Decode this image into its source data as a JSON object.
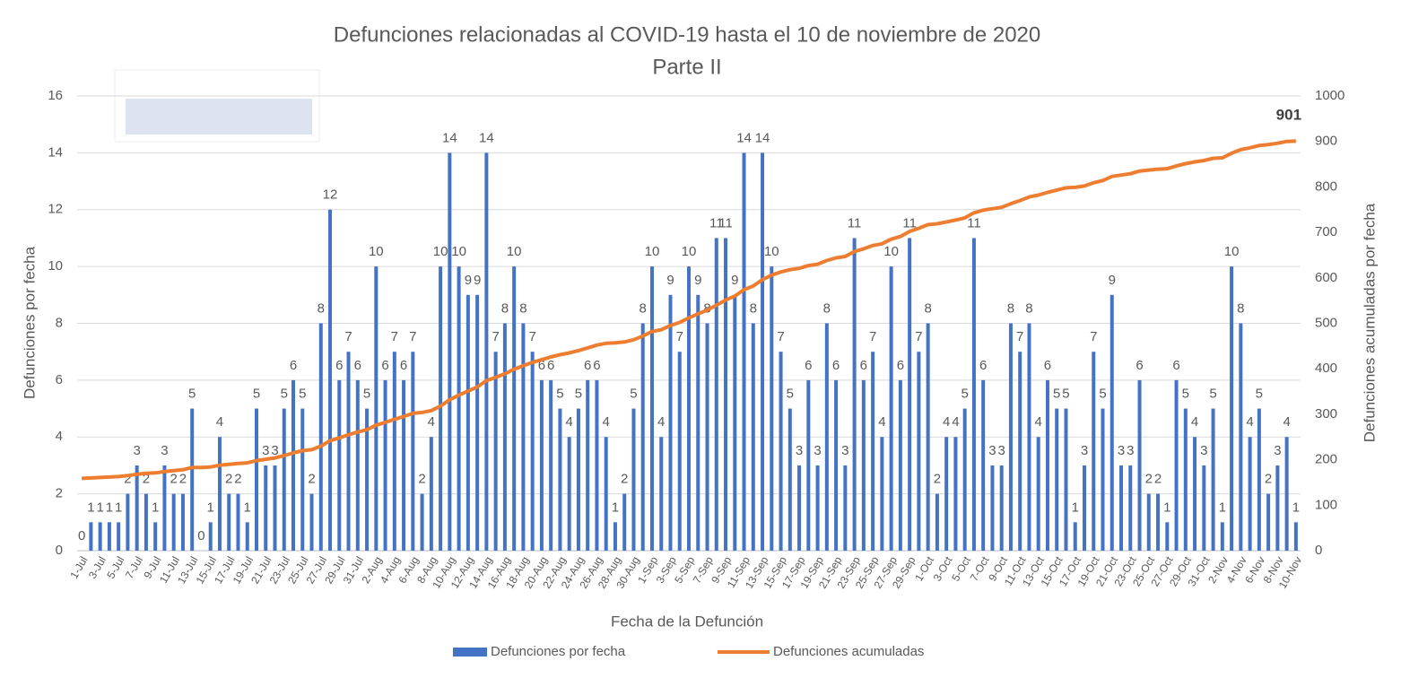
{
  "chart_data": {
    "type": "bar",
    "title": "Defunciones relacionadas al COVID-19 hasta el 10 de noviembre de 2020",
    "subtitle": "Parte II",
    "x_label": "Fecha de la Defunción",
    "y_label": "Defunciones por fecha",
    "y2_label": "Defunciones acumuladas por fecha",
    "categories": [
      "1-Jul",
      null,
      "3-Jul",
      null,
      "5-Jul",
      null,
      "7-Jul",
      null,
      "9-Jul",
      null,
      "11-Jul",
      null,
      "13-Jul",
      null,
      "15-Jul",
      null,
      "17-Jul",
      null,
      "19-Jul",
      null,
      "21-Jul",
      null,
      "23-Jul",
      null,
      "25-Jul",
      null,
      "27-Jul",
      null,
      "29-Jul",
      null,
      "31-Jul",
      null,
      "2-Aug",
      null,
      "4-Aug",
      null,
      "6-Aug",
      null,
      "8-Aug",
      null,
      "10-Aug",
      null,
      "12-Aug",
      null,
      "14-Aug",
      null,
      "16-Aug",
      null,
      "18-Aug",
      null,
      "20-Aug",
      null,
      "22-Aug",
      null,
      "24-Aug",
      null,
      "26-Aug",
      null,
      "28-Aug",
      null,
      "30-Aug",
      null,
      "1-Sep",
      null,
      "3-Sep",
      null,
      "5-Sep",
      null,
      "7-Sep",
      null,
      "9-Sep",
      null,
      "11-Sep",
      null,
      "13-Sep",
      null,
      "15-Sep",
      null,
      "17-Sep",
      null,
      "19-Sep",
      null,
      "21-Sep",
      null,
      "23-Sep",
      null,
      "25-Sep",
      null,
      "27-Sep",
      null,
      "29-Sep",
      null,
      "1-Oct",
      null,
      "3-Oct",
      null,
      "5-Oct",
      null,
      "7-Oct",
      null,
      "9-Oct",
      null,
      "11-Oct",
      null,
      "13-Oct",
      null,
      "15-Oct",
      null,
      "17-Oct",
      null,
      "19-Oct",
      null,
      "21-Oct",
      null,
      "23-Oct",
      null,
      "25-Oct",
      null,
      "27-Oct",
      null,
      "29-Oct",
      null,
      "31-Oct",
      null,
      "2-Nov",
      null,
      "4-Nov",
      null,
      "6-Nov",
      null,
      "8-Nov",
      null,
      "10-Nov"
    ],
    "series": [
      {
        "name": "Defunciones por fecha",
        "type": "bar",
        "color": "#4472c4",
        "values": [
          0,
          1,
          1,
          1,
          1,
          2,
          3,
          2,
          1,
          3,
          2,
          2,
          5,
          0,
          1,
          4,
          2,
          2,
          1,
          5,
          3,
          3,
          5,
          6,
          5,
          2,
          8,
          12,
          6,
          7,
          6,
          5,
          10,
          6,
          7,
          6,
          7,
          2,
          4,
          10,
          14,
          10,
          9,
          9,
          14,
          7,
          8,
          10,
          8,
          7,
          6,
          6,
          5,
          4,
          5,
          6,
          6,
          4,
          1,
          2,
          5,
          8,
          10,
          4,
          9,
          7,
          10,
          9,
          8,
          11,
          11,
          9,
          14,
          8,
          14,
          10,
          7,
          5,
          3,
          6,
          3,
          8,
          6,
          3,
          11,
          6,
          7,
          4,
          10,
          6,
          11,
          7,
          8,
          2,
          4,
          4,
          5,
          11,
          6,
          3,
          3,
          8,
          7,
          8,
          4,
          6,
          5,
          5,
          1,
          3,
          7,
          5,
          9,
          3,
          3,
          6,
          2,
          2,
          1,
          6,
          5,
          4,
          3,
          5,
          1,
          10,
          8,
          4,
          5,
          2,
          3,
          4,
          1
        ]
      },
      {
        "name": "Defunciones acumuladas",
        "type": "line",
        "axis": "y2",
        "color": "#ed7d31",
        "values": [
          159,
          160,
          161,
          162,
          163,
          165,
          168,
          170,
          171,
          174,
          176,
          178,
          183,
          183,
          184,
          188,
          190,
          192,
          193,
          198,
          201,
          204,
          209,
          215,
          220,
          222,
          230,
          242,
          248,
          255,
          261,
          266,
          276,
          282,
          289,
          295,
          302,
          304,
          308,
          318,
          332,
          342,
          351,
          360,
          374,
          381,
          389,
          399,
          407,
          414,
          420,
          426,
          431,
          435,
          440,
          446,
          452,
          456,
          457,
          459,
          464,
          472,
          482,
          486,
          495,
          502,
          512,
          521,
          529,
          540,
          551,
          560,
          574,
          582,
          596,
          606,
          613,
          618,
          621,
          627,
          630,
          638,
          644,
          647,
          658,
          664,
          671,
          675,
          685,
          691,
          702,
          709,
          717,
          719,
          723,
          727,
          732,
          743,
          749,
          752,
          755,
          763,
          770,
          778,
          782,
          788,
          793,
          798,
          799,
          802,
          809,
          814,
          823,
          826,
          829,
          835,
          837,
          839,
          840,
          846,
          851,
          855,
          858,
          863,
          864,
          874,
          882,
          886,
          891,
          893,
          896,
          900,
          901
        ]
      }
    ],
    "ylim": [
      0,
      16
    ],
    "yticks": [
      0,
      2,
      4,
      6,
      8,
      10,
      12,
      14,
      16
    ],
    "y2lim": [
      0,
      1000
    ],
    "y2ticks": [
      0,
      100,
      200,
      300,
      400,
      500,
      600,
      700,
      800,
      900,
      1000
    ],
    "grid": true,
    "legend": "bottom"
  }
}
